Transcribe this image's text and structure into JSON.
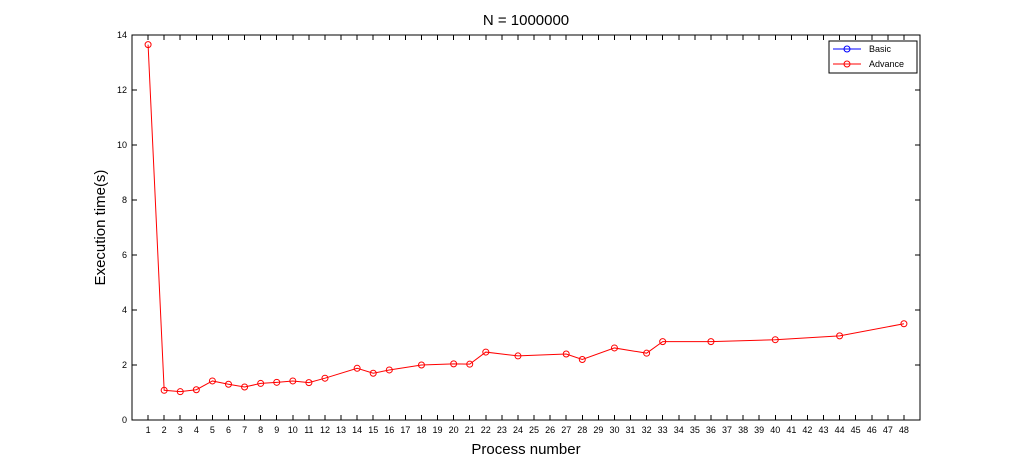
{
  "chart_data": {
    "type": "line",
    "title": "N = 1000000",
    "xlabel": "Process number",
    "ylabel": "Execution time(s)",
    "xlim": [
      0,
      49
    ],
    "ylim": [
      0,
      14
    ],
    "xticks": [
      1,
      2,
      3,
      4,
      5,
      6,
      7,
      8,
      9,
      10,
      11,
      12,
      13,
      14,
      15,
      16,
      17,
      18,
      19,
      20,
      21,
      22,
      23,
      24,
      25,
      26,
      27,
      28,
      29,
      30,
      31,
      32,
      33,
      34,
      35,
      36,
      37,
      38,
      39,
      40,
      41,
      42,
      43,
      44,
      45,
      46,
      47,
      48
    ],
    "yticks": [
      0,
      2,
      4,
      6,
      8,
      10,
      12,
      14
    ],
    "grid": false,
    "legend_position": "top-right",
    "colors": {
      "Basic": "#0000ff",
      "Advance": "#ff0000"
    },
    "series": [
      {
        "name": "Basic",
        "x": [],
        "y": []
      },
      {
        "name": "Advance",
        "x": [
          1,
          2,
          3,
          4,
          5,
          6,
          7,
          8,
          9,
          10,
          11,
          12,
          14,
          15,
          16,
          18,
          20,
          21,
          22,
          24,
          27,
          28,
          30,
          32,
          33,
          36,
          40,
          44,
          48
        ],
        "y": [
          13.65,
          1.08,
          1.03,
          1.1,
          1.42,
          1.3,
          1.2,
          1.33,
          1.37,
          1.42,
          1.36,
          1.52,
          1.88,
          1.7,
          1.82,
          2.0,
          2.04,
          2.03,
          2.47,
          2.33,
          2.4,
          2.2,
          2.62,
          2.43,
          2.85,
          2.85,
          2.92,
          3.06,
          3.5
        ]
      }
    ]
  }
}
